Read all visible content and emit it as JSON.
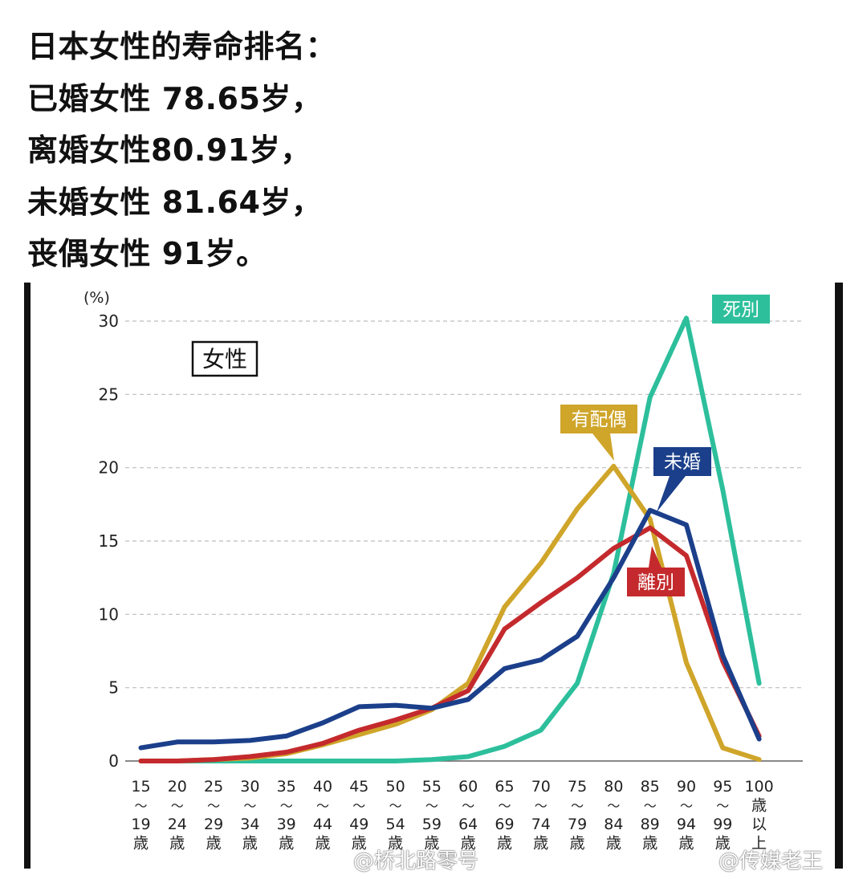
{
  "headline": {
    "lines": [
      "日本女性的寿命排名：",
      "已婚女性 78.65岁，",
      "离婚女性80.91岁，",
      "未婚女性  81.64岁，",
      "丧偶女性 91岁。"
    ]
  },
  "watermarks": [
    "@桥北路零号",
    "@传媒老王"
  ],
  "chart_data": {
    "type": "line",
    "title": "女性",
    "ylabel": "(%)",
    "ylim": [
      0,
      30
    ],
    "yticks": [
      0,
      5,
      10,
      15,
      20,
      25,
      30
    ],
    "grid": true,
    "categories": [
      [
        "15",
        "～",
        "19",
        "歳"
      ],
      [
        "20",
        "～",
        "24",
        "歳"
      ],
      [
        "25",
        "～",
        "29",
        "歳"
      ],
      [
        "30",
        "～",
        "34",
        "歳"
      ],
      [
        "35",
        "～",
        "39",
        "歳"
      ],
      [
        "40",
        "～",
        "44",
        "歳"
      ],
      [
        "45",
        "～",
        "49",
        "歳"
      ],
      [
        "50",
        "～",
        "54",
        "歳"
      ],
      [
        "55",
        "～",
        "59",
        "歳"
      ],
      [
        "60",
        "～",
        "64",
        "歳"
      ],
      [
        "65",
        "～",
        "69",
        "歳"
      ],
      [
        "70",
        "～",
        "74",
        "歳"
      ],
      [
        "75",
        "～",
        "79",
        "歳"
      ],
      [
        "80",
        "～",
        "84",
        "歳"
      ],
      [
        "85",
        "～",
        "89",
        "歳"
      ],
      [
        "90",
        "～",
        "94",
        "歳"
      ],
      [
        "95",
        "～",
        "99",
        "歳"
      ],
      [
        "100",
        "歳",
        "以",
        "上"
      ]
    ],
    "series": [
      {
        "name": "死別",
        "color": "#2dbf9c",
        "values": [
          0,
          0,
          0,
          0,
          0,
          0,
          0,
          0,
          0.1,
          0.3,
          1.0,
          2.1,
          5.3,
          12.8,
          24.8,
          30.2,
          18.5,
          5.3
        ]
      },
      {
        "name": "有配偶",
        "color": "#cfa52a",
        "values": [
          0,
          0,
          0.1,
          0.2,
          0.5,
          1.1,
          1.8,
          2.5,
          3.5,
          5.3,
          10.5,
          13.5,
          17.2,
          20.1,
          16.5,
          6.7,
          0.9,
          0.1
        ]
      },
      {
        "name": "離別",
        "color": "#c42a2d",
        "values": [
          0,
          0,
          0.1,
          0.3,
          0.6,
          1.2,
          2.1,
          2.8,
          3.6,
          4.8,
          9.0,
          10.8,
          12.5,
          14.5,
          15.9,
          14.0,
          6.8,
          1.7
        ]
      },
      {
        "name": "未婚",
        "color": "#1b3f8a",
        "values": [
          0.9,
          1.3,
          1.3,
          1.4,
          1.7,
          2.6,
          3.7,
          3.8,
          3.6,
          4.2,
          6.3,
          6.9,
          8.5,
          12.5,
          17.1,
          16.1,
          7.2,
          1.5
        ]
      }
    ]
  }
}
